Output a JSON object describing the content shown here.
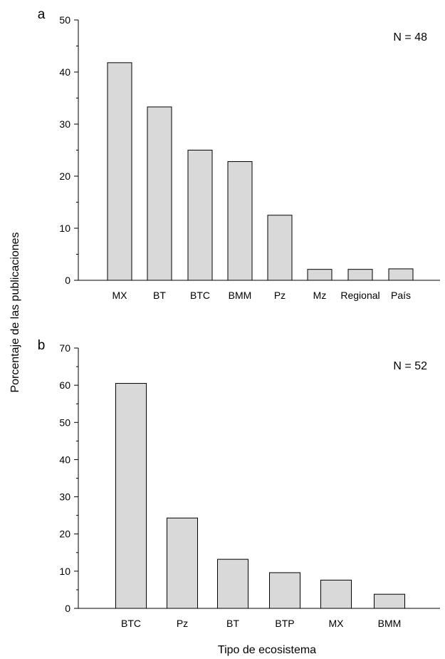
{
  "ylabel": "Porcentaje de las publicaciones",
  "xlabel": "Tipo de ecosistema",
  "colors": {
    "bar_fill": "#d9d9d9",
    "bar_stroke": "#000000"
  },
  "chart_data": [
    {
      "panel": "a",
      "type": "bar",
      "annotation": "N = 48",
      "categories": [
        "MX",
        "BT",
        "BTC",
        "BMM",
        "Pz",
        "Mz",
        "Regional",
        "País"
      ],
      "values": [
        41.8,
        33.3,
        25.0,
        22.8,
        12.5,
        2.1,
        2.1,
        2.2
      ],
      "ylim": [
        0,
        50
      ],
      "yticks": [
        0,
        10,
        20,
        30,
        40,
        50
      ],
      "xlabel": "",
      "ylabel": "Porcentaje de las publicaciones",
      "grid": false,
      "legend": "none"
    },
    {
      "panel": "b",
      "type": "bar",
      "annotation": "N = 52",
      "categories": [
        "BTC",
        "Pz",
        "BT",
        "BTP",
        "MX",
        "BMM"
      ],
      "values": [
        60.5,
        24.3,
        13.2,
        9.6,
        7.6,
        3.8
      ],
      "ylim": [
        0,
        70
      ],
      "yticks": [
        0,
        10,
        20,
        30,
        40,
        50,
        60,
        70
      ],
      "xlabel": "Tipo de ecosistema",
      "ylabel": "Porcentaje de las publicaciones",
      "grid": false,
      "legend": "none"
    }
  ]
}
